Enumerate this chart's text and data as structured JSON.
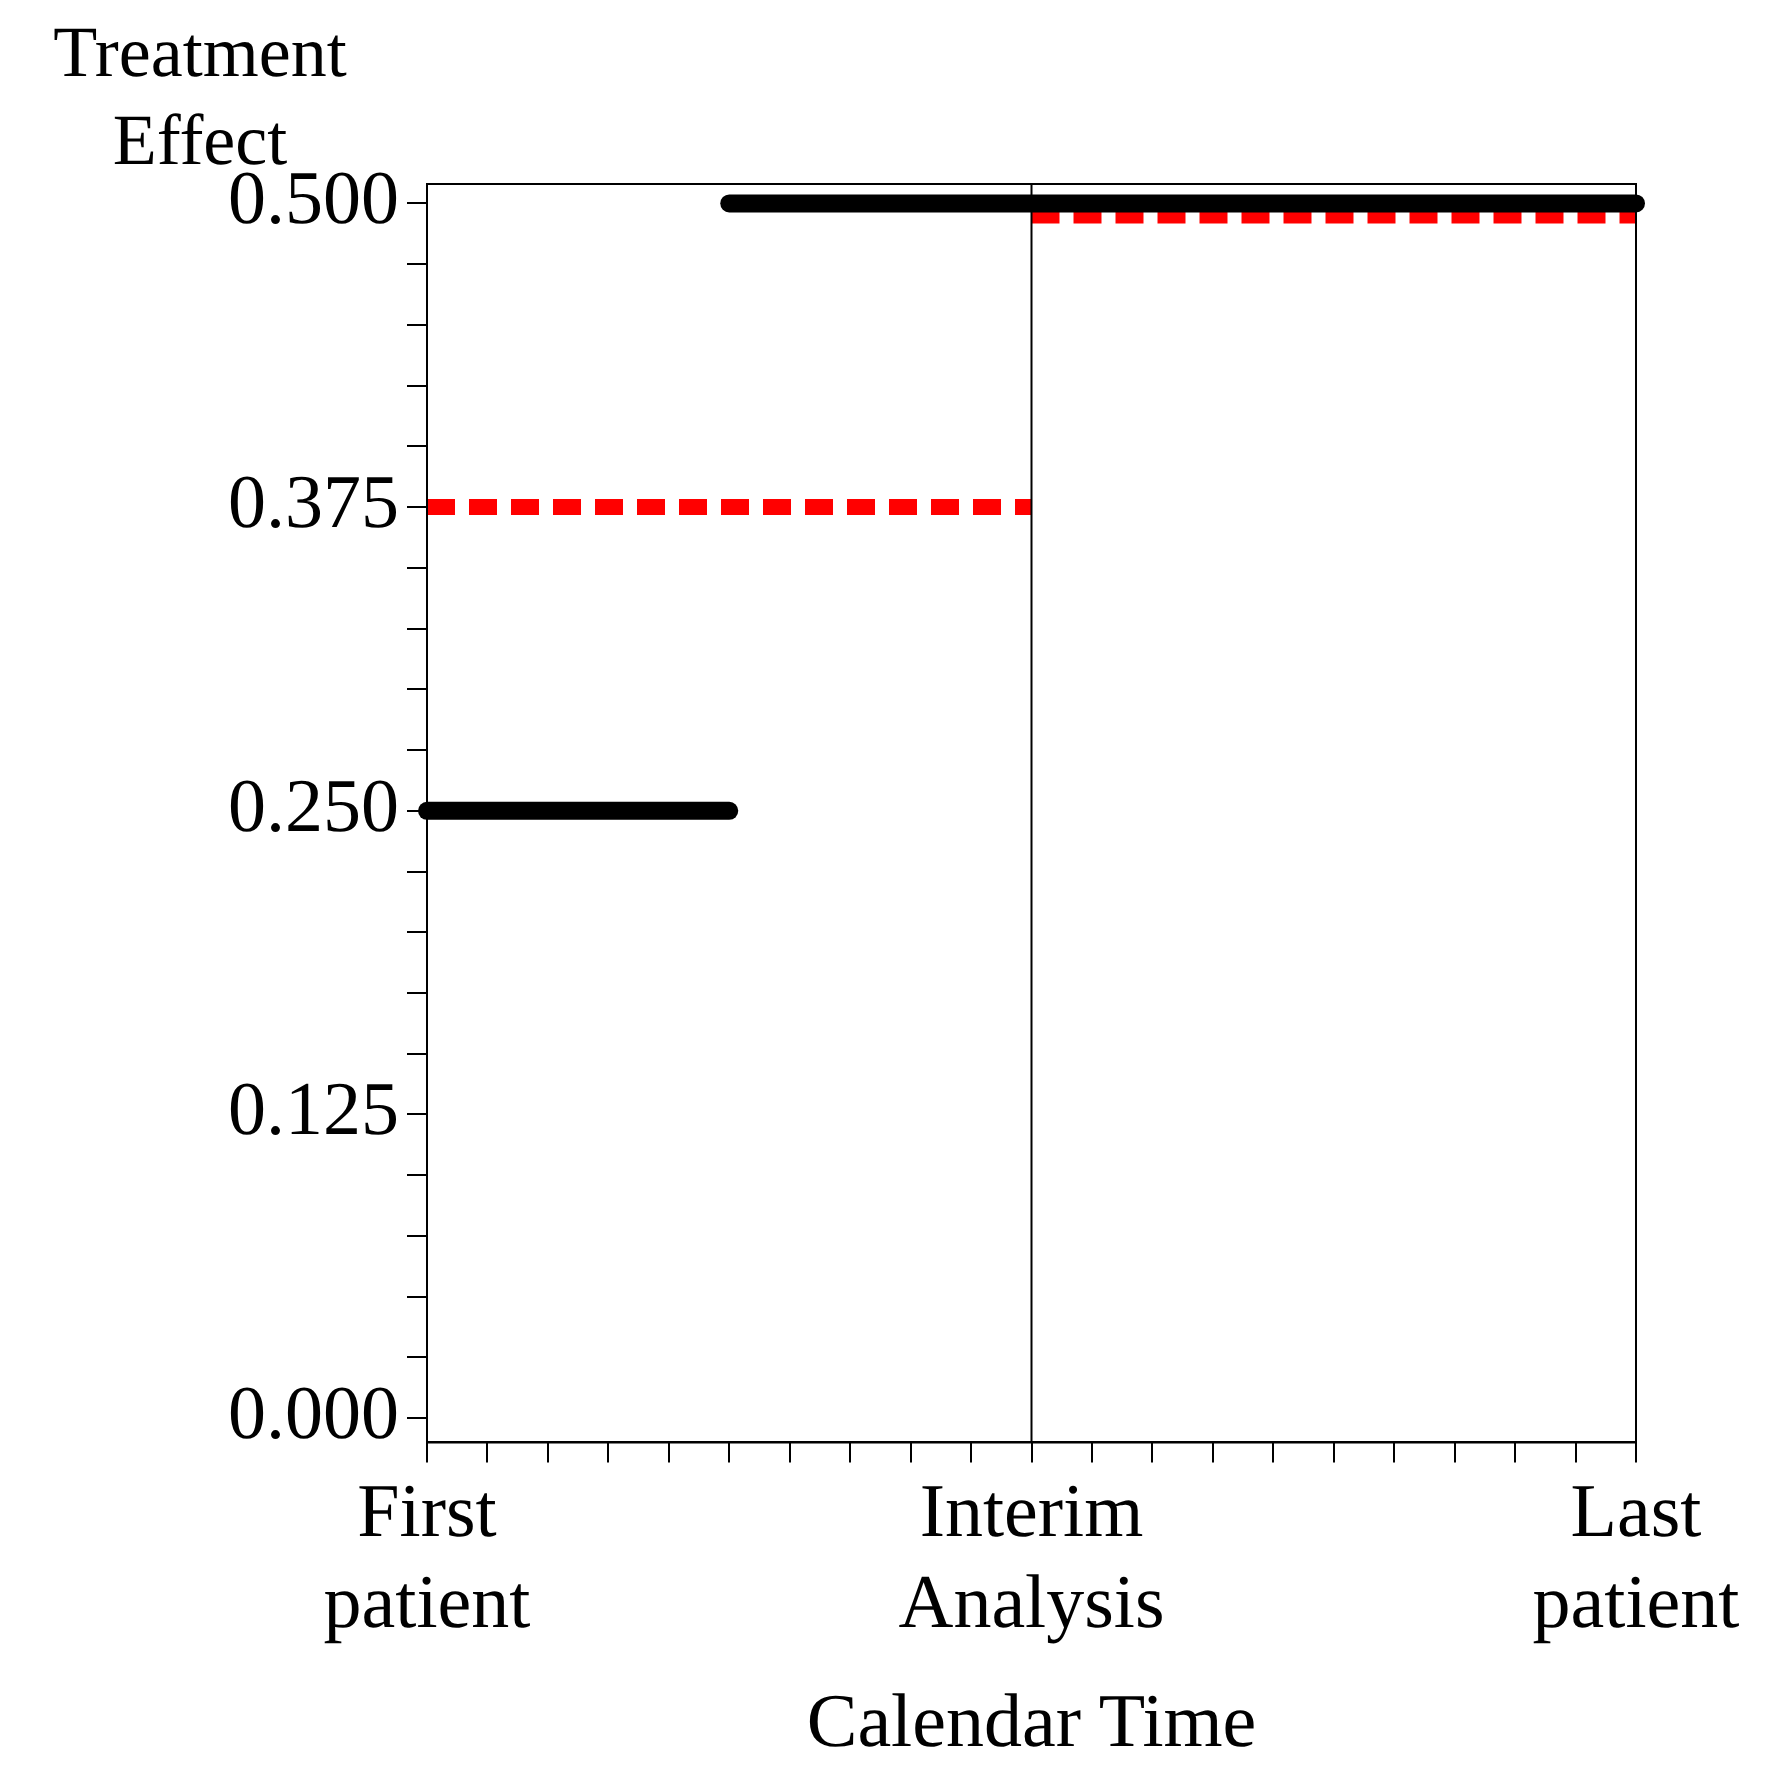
{
  "chart_data": {
    "type": "line",
    "ylabel": "Treatment Effect",
    "xlabel": "Calendar Time",
    "categories": [
      "First patient",
      null,
      null,
      null,
      null,
      null,
      null,
      null,
      null,
      null,
      "Interim Analysis",
      null,
      null,
      null,
      null,
      null,
      null,
      null,
      null,
      null,
      "Last patient"
    ],
    "ylim": [
      -0.01,
      0.508
    ],
    "yticks": [
      {
        "value": 0,
        "label": "0.000"
      },
      {
        "value": 0.025,
        "label": null
      },
      {
        "value": 0.05,
        "label": null
      },
      {
        "value": 0.075,
        "label": null
      },
      {
        "value": 0.1,
        "label": null
      },
      {
        "value": 0.125,
        "label": "0.125"
      },
      {
        "value": 0.15,
        "label": null
      },
      {
        "value": 0.175,
        "label": null
      },
      {
        "value": 0.2,
        "label": null
      },
      {
        "value": 0.225,
        "label": null
      },
      {
        "value": 0.25,
        "label": "0.250"
      },
      {
        "value": 0.275,
        "label": null
      },
      {
        "value": 0.3,
        "label": null
      },
      {
        "value": 0.325,
        "label": null
      },
      {
        "value": 0.35,
        "label": null
      },
      {
        "value": 0.375,
        "label": "0.375"
      },
      {
        "value": 0.4,
        "label": null
      },
      {
        "value": 0.425,
        "label": null
      },
      {
        "value": 0.45,
        "label": null
      },
      {
        "value": 0.475,
        "label": null
      },
      {
        "value": 0.5,
        "label": "0.500"
      }
    ],
    "grid": false,
    "legend": false,
    "marker": "none",
    "ref_lines": [
      {
        "axis": "x",
        "value": "Interim Analysis",
        "color": "#000000"
      }
    ],
    "series": [
      {
        "color": "#000000",
        "line_style": "solid",
        "values": [
          0.25,
          0.25,
          0.25,
          0.25,
          0.25,
          0.25,
          null,
          null,
          null,
          null,
          null,
          null,
          null,
          null,
          null,
          null,
          null,
          null,
          null,
          null,
          null
        ]
      },
      {
        "color": "#000000",
        "line_style": "solid",
        "values": [
          null,
          null,
          null,
          null,
          null,
          0.5,
          0.5,
          0.5,
          0.5,
          0.5,
          0.5,
          0.5,
          0.5,
          0.5,
          0.5,
          0.5,
          0.5,
          0.5,
          0.5,
          0.5,
          0.5
        ]
      },
      {
        "color": "#ff0000",
        "line_style": "dashed",
        "values": [
          0.375,
          0.375,
          0.375,
          0.375,
          0.375,
          0.375,
          0.375,
          0.375,
          0.375,
          0.375,
          0.375,
          null,
          null,
          null,
          null,
          null,
          null,
          null,
          null,
          null,
          null
        ]
      },
      {
        "color": "#ff0000",
        "line_style": "dashed",
        "values": [
          null,
          null,
          null,
          null,
          null,
          null,
          null,
          null,
          null,
          null,
          0.495,
          0.495,
          0.495,
          0.495,
          0.495,
          0.495,
          0.495,
          0.495,
          0.495,
          0.495,
          0.495
        ]
      }
    ]
  }
}
